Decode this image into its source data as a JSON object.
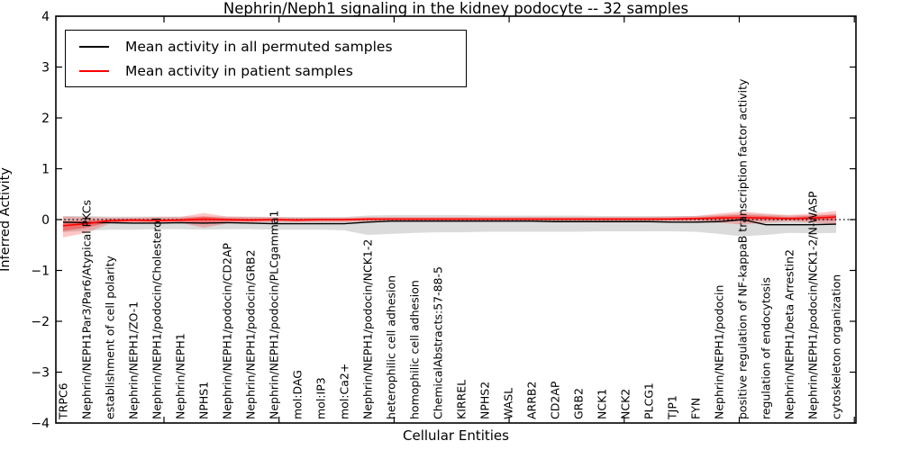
{
  "chart_data": {
    "type": "line",
    "title": "Nephrin/Neph1 signaling in the kidney podocyte -- 32 samples",
    "xlabel": "Cellular Entities",
    "ylabel": "Inferred Activity",
    "ylim": [
      -4,
      4
    ],
    "yticks": [
      4,
      3,
      2,
      1,
      0,
      -1,
      -2,
      -3,
      -4
    ],
    "grid": false,
    "legend_position": "upper left",
    "categories": [
      "TRPC6",
      "Nephrin/NEPH1Par3/Par6/Atypical PKCs",
      "establishment of cell polarity",
      "Nephrin/NEPH1/ZO-1",
      "Nephrin/NEPH1/podocin/Cholesterol",
      "Nephrin/NEPH1",
      "NPHS1",
      "Nephrin/NEPH1/podocin/CD2AP",
      "Nephrin/NEPH1/podocin/GRB2",
      "Nephrin/NEPH1/podocin/PLCgamma1",
      "mol:DAG",
      "mol:IP3",
      "mol:Ca2+",
      "Nephrin/NEPH1/podocin/NCK1-2",
      "heterophilic cell adhesion",
      "homophilic cell adhesion",
      "ChemicalAbstracts:57-88-5",
      "KIRREL",
      "NPHS2",
      "WASL",
      "ARRB2",
      "CD2AP",
      "GRB2",
      "NCK1",
      "NCK2",
      "PLCG1",
      "TJP1",
      "FYN",
      "Nephrin/NEPH1/podocin",
      "positive regulation of NF-kappaB transcription factor activity",
      "regulation of endocytosis",
      "Nephrin/NEPH1/beta Arrestin2",
      "Nephrin/NEPH1/podocin/NCK1-2/N-WASP",
      "cytoskeleton organization"
    ],
    "series": [
      {
        "name": "Mean activity in all permuted samples",
        "color": "#000000",
        "band_color": "rgba(0,0,0,0.14)",
        "values": [
          -0.05,
          -0.06,
          -0.06,
          -0.07,
          -0.07,
          -0.06,
          -0.07,
          -0.06,
          -0.07,
          -0.08,
          -0.08,
          -0.08,
          -0.08,
          -0.05,
          -0.03,
          -0.03,
          -0.03,
          -0.03,
          -0.03,
          -0.03,
          -0.03,
          -0.04,
          -0.04,
          -0.04,
          -0.04,
          -0.04,
          -0.05,
          -0.05,
          -0.04,
          0.0,
          -0.1,
          -0.1,
          -0.1,
          -0.09
        ],
        "band_upper": [
          0.07,
          0.07,
          0.06,
          0.06,
          0.06,
          0.06,
          0.06,
          0.06,
          0.06,
          0.05,
          0.05,
          0.05,
          0.05,
          0.08,
          0.09,
          0.09,
          0.09,
          0.09,
          0.08,
          0.08,
          0.08,
          0.08,
          0.08,
          0.07,
          0.07,
          0.07,
          0.07,
          0.07,
          0.09,
          0.12,
          0.1,
          0.08,
          0.09,
          0.1
        ],
        "band_lower": [
          -0.25,
          -0.22,
          -0.2,
          -0.2,
          -0.19,
          -0.19,
          -0.2,
          -0.19,
          -0.19,
          -0.2,
          -0.2,
          -0.2,
          -0.21,
          -0.3,
          -0.28,
          -0.26,
          -0.25,
          -0.25,
          -0.24,
          -0.24,
          -0.24,
          -0.24,
          -0.24,
          -0.23,
          -0.23,
          -0.23,
          -0.23,
          -0.24,
          -0.28,
          -0.33,
          -0.3,
          -0.26,
          -0.27,
          -0.26
        ]
      },
      {
        "name": "Mean activity in patient samples",
        "color": "#ff0000",
        "band_color": "rgba(255,0,0,0.22)",
        "values": [
          -0.12,
          -0.08,
          -0.02,
          -0.01,
          -0.02,
          -0.01,
          0.01,
          0.0,
          -0.01,
          0.0,
          -0.01,
          0.0,
          0.0,
          0.01,
          0.01,
          0.01,
          0.01,
          0.01,
          0.01,
          0.01,
          0.01,
          0.01,
          0.01,
          0.01,
          0.01,
          0.01,
          0.01,
          0.02,
          0.03,
          0.04,
          0.03,
          0.02,
          0.03,
          0.05
        ],
        "band_upper": [
          0.06,
          0.05,
          0.04,
          0.04,
          0.05,
          0.05,
          0.13,
          0.06,
          0.05,
          0.05,
          0.04,
          0.04,
          0.04,
          0.05,
          0.05,
          0.05,
          0.05,
          0.05,
          0.05,
          0.05,
          0.05,
          0.05,
          0.05,
          0.05,
          0.05,
          0.05,
          0.06,
          0.07,
          0.12,
          0.16,
          0.12,
          0.09,
          0.12,
          0.17
        ],
        "band_lower": [
          -0.35,
          -0.26,
          -0.08,
          -0.06,
          -0.07,
          -0.06,
          -0.16,
          -0.08,
          -0.06,
          -0.05,
          -0.05,
          -0.05,
          -0.05,
          -0.04,
          -0.03,
          -0.03,
          -0.03,
          -0.03,
          -0.03,
          -0.03,
          -0.03,
          -0.03,
          -0.03,
          -0.03,
          -0.03,
          -0.03,
          -0.03,
          -0.04,
          -0.06,
          -0.1,
          -0.06,
          -0.04,
          -0.06,
          -0.09
        ]
      }
    ],
    "reference_line": {
      "y": 0,
      "style": "dotted",
      "color": "#000000"
    }
  }
}
